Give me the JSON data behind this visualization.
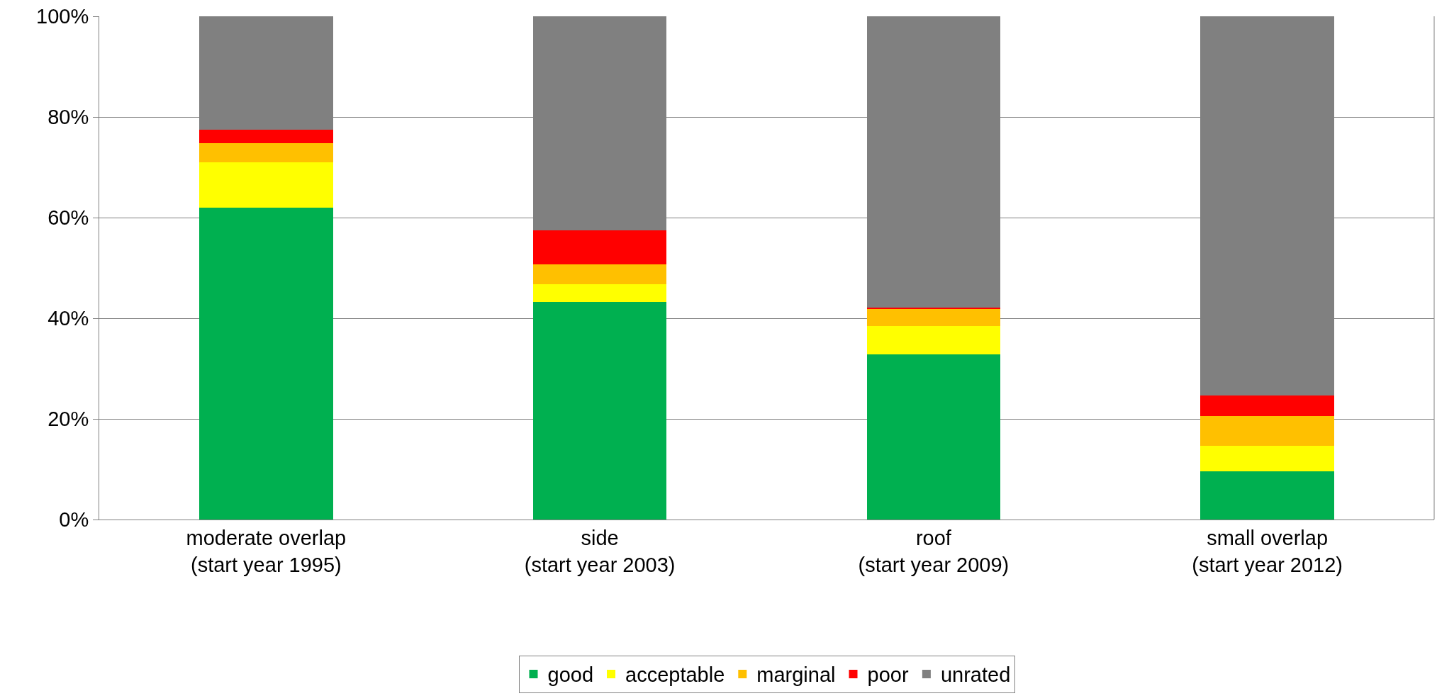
{
  "chart_data": {
    "type": "bar",
    "stacked": true,
    "categories": [
      "moderate overlap\n(start year 1995)",
      "side\n(start year 2003)",
      "roof\n(start year 2009)",
      "small overlap\n(start year 2012)"
    ],
    "series": [
      {
        "name": "good",
        "color": "#00b050",
        "values": [
          62.0,
          43.2,
          32.8,
          9.6
        ]
      },
      {
        "name": "acceptable",
        "color": "#ffff00",
        "values": [
          9.0,
          3.6,
          5.7,
          5.1
        ]
      },
      {
        "name": "marginal",
        "color": "#ffc000",
        "values": [
          3.8,
          3.9,
          3.4,
          5.9
        ]
      },
      {
        "name": "poor",
        "color": "#ff0000",
        "values": [
          2.7,
          6.7,
          0.2,
          4.1
        ]
      },
      {
        "name": "unrated",
        "color": "#808080",
        "values": [
          22.5,
          42.6,
          57.9,
          75.3
        ]
      }
    ],
    "ylim": [
      0,
      100
    ],
    "yticks": [
      {
        "value": 0,
        "label": "0%"
      },
      {
        "value": 20,
        "label": "20%"
      },
      {
        "value": 40,
        "label": "40%"
      },
      {
        "value": 60,
        "label": "60%"
      },
      {
        "value": 80,
        "label": "80%"
      },
      {
        "value": 100,
        "label": "100%"
      }
    ],
    "grid": "y",
    "legend": "bottom"
  }
}
